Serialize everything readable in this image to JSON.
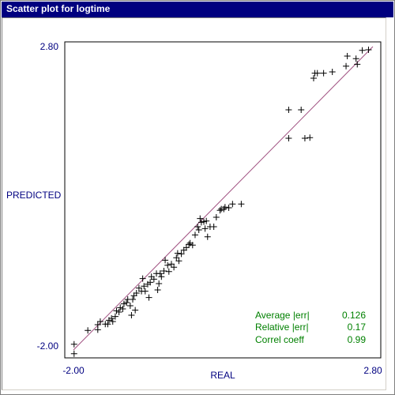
{
  "window": {
    "title": "Scatter plot for logtime"
  },
  "colors": {
    "title_bg": "#00007f",
    "label": "#000080",
    "stats": "#008000",
    "diagonal": "#a05080",
    "points": "#000000"
  },
  "stats": [
    {
      "label": "Average |err|",
      "value": "0.126"
    },
    {
      "label": "Relative |err|",
      "value": "0.17"
    },
    {
      "label": "Correl coeff",
      "value": "0.99"
    }
  ],
  "chart_data": {
    "type": "scatter",
    "xlabel": "REAL",
    "ylabel": "PREDICTED",
    "xlim": [
      -2.0,
      2.8
    ],
    "ylim": [
      -2.0,
      2.8
    ],
    "x_tick_labels": [
      "-2.00",
      "2.80"
    ],
    "y_tick_labels": [
      "-2.00",
      "2.80"
    ],
    "grid": false,
    "reference_line": "y = x",
    "points": [
      [
        -1.99,
        -2.06
      ],
      [
        -1.99,
        -1.91
      ],
      [
        -1.77,
        -1.69
      ],
      [
        -1.61,
        -1.68
      ],
      [
        -1.61,
        -1.6
      ],
      [
        -1.57,
        -1.55
      ],
      [
        -1.49,
        -1.59
      ],
      [
        -1.45,
        -1.59
      ],
      [
        -1.43,
        -1.53
      ],
      [
        -1.39,
        -1.5
      ],
      [
        -1.37,
        -1.55
      ],
      [
        -1.33,
        -1.47
      ],
      [
        -1.31,
        -1.38
      ],
      [
        -1.27,
        -1.4
      ],
      [
        -1.25,
        -1.33
      ],
      [
        -1.21,
        -1.35
      ],
      [
        -1.19,
        -1.27
      ],
      [
        -1.15,
        -1.25
      ],
      [
        -1.13,
        -1.2
      ],
      [
        -1.09,
        -1.3
      ],
      [
        -1.07,
        -1.45
      ],
      [
        -1.05,
        -1.2
      ],
      [
        -1.03,
        -1.14
      ],
      [
        -1.01,
        -1.37
      ],
      [
        -0.99,
        -1.1
      ],
      [
        -0.95,
        -1.02
      ],
      [
        -0.91,
        -1.07
      ],
      [
        -0.89,
        -0.87
      ],
      [
        -0.87,
        -0.99
      ],
      [
        -0.85,
        -1.07
      ],
      [
        -0.81,
        -0.96
      ],
      [
        -0.79,
        -1.17
      ],
      [
        -0.77,
        -0.93
      ],
      [
        -0.75,
        -0.84
      ],
      [
        -0.71,
        -0.88
      ],
      [
        -0.67,
        -0.79
      ],
      [
        -0.65,
        -1.05
      ],
      [
        -0.63,
        -0.95
      ],
      [
        -0.61,
        -0.79
      ],
      [
        -0.59,
        -0.84
      ],
      [
        -0.55,
        -0.75
      ],
      [
        -0.53,
        -0.58
      ],
      [
        -0.49,
        -0.66
      ],
      [
        -0.47,
        -0.76
      ],
      [
        -0.43,
        -0.64
      ],
      [
        -0.39,
        -0.69
      ],
      [
        -0.35,
        -0.54
      ],
      [
        -0.33,
        -0.47
      ],
      [
        -0.31,
        -0.59
      ],
      [
        -0.27,
        -0.48
      ],
      [
        -0.23,
        -0.42
      ],
      [
        -0.19,
        -0.38
      ],
      [
        -0.15,
        -0.33
      ],
      [
        -0.13,
        -0.31
      ],
      [
        -0.09,
        -0.34
      ],
      [
        -0.05,
        -0.18
      ],
      [
        -0.01,
        -0.05
      ],
      [
        0.01,
        -0.1
      ],
      [
        0.03,
        0.08
      ],
      [
        0.05,
        0.02
      ],
      [
        0.09,
        0.03
      ],
      [
        0.11,
        -0.08
      ],
      [
        0.13,
        0.04
      ],
      [
        0.15,
        -0.21
      ],
      [
        0.19,
        -0.05
      ],
      [
        0.25,
        -0.05
      ],
      [
        0.29,
        0.1
      ],
      [
        0.35,
        0.21
      ],
      [
        0.37,
        0.23
      ],
      [
        0.41,
        0.23
      ],
      [
        0.43,
        0.26
      ],
      [
        0.49,
        0.25
      ],
      [
        0.55,
        0.31
      ],
      [
        0.69,
        0.31
      ],
      [
        1.45,
        1.35
      ],
      [
        1.45,
        1.8
      ],
      [
        1.65,
        1.8
      ],
      [
        1.71,
        1.35
      ],
      [
        1.79,
        1.36
      ],
      [
        1.85,
        2.3
      ],
      [
        1.87,
        2.38
      ],
      [
        1.91,
        2.38
      ],
      [
        2.01,
        2.38
      ],
      [
        2.15,
        2.4
      ],
      [
        2.37,
        2.49
      ],
      [
        2.39,
        2.65
      ],
      [
        2.53,
        2.61
      ],
      [
        2.55,
        2.52
      ],
      [
        2.63,
        2.74
      ],
      [
        2.73,
        2.75
      ]
    ]
  }
}
